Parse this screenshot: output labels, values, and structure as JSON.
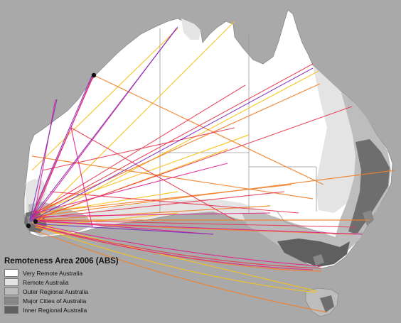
{
  "legend": {
    "title": "Remoteness Area 2006 (ABS)",
    "items": [
      {
        "label": "Very Remote Australia",
        "color": "#ffffff"
      },
      {
        "label": "Remote Australia",
        "color": "#e4e4e4"
      },
      {
        "label": "Outer Regional Australia",
        "color": "#bdbdbd"
      },
      {
        "label": "Major Cities of Australia",
        "color": "#888888"
      },
      {
        "label": "Inner Regional Australia",
        "color": "#5f5f5f"
      }
    ]
  },
  "colors": {
    "background": "#a9a9a9",
    "state_border": "#999999",
    "flow_purple": "#7b2fbe",
    "flow_magenta": "#e0208c",
    "flow_red": "#e8354f",
    "flow_orange": "#f07f2a",
    "flow_yellow": "#f7c21d"
  }
}
